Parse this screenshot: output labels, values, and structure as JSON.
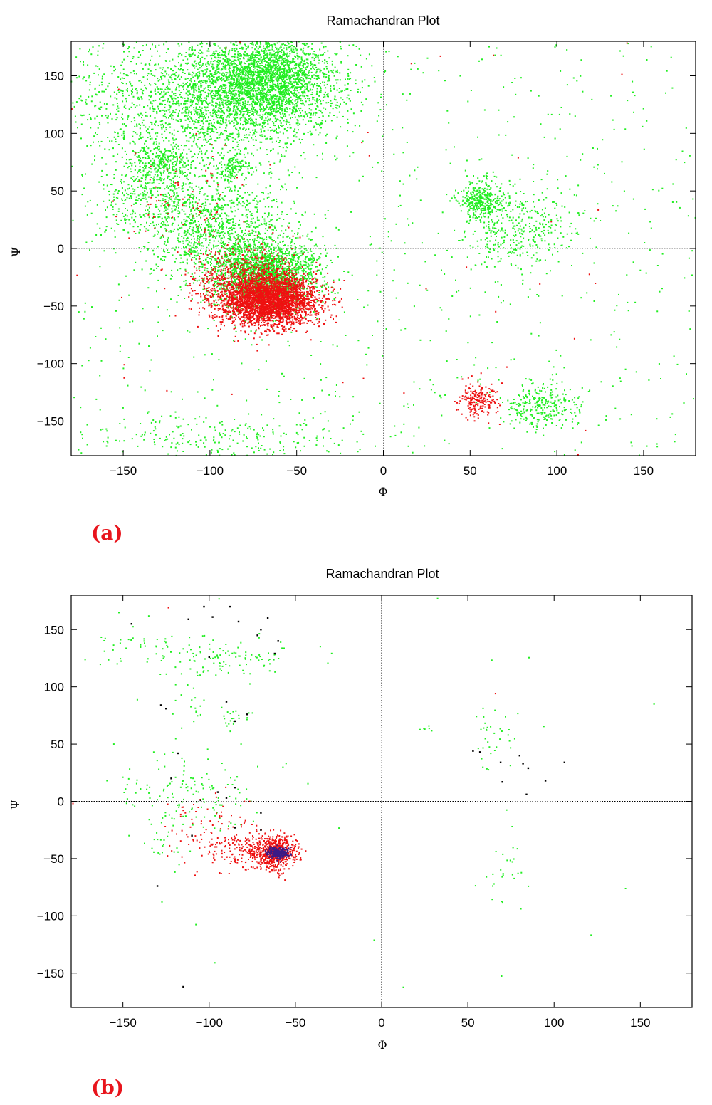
{
  "colors": {
    "green": "#22ee22",
    "red": "#ee1111",
    "black": "#000000",
    "purple": "#3a1b86",
    "panel_label": "#e8141c"
  },
  "chart_data": [
    {
      "type": "scatter",
      "panel_label": "(a)",
      "title": "Ramachandran Plot",
      "xlabel": "Φ",
      "ylabel": "Ψ",
      "xlim": [
        -180,
        180
      ],
      "ylim": [
        -180,
        180
      ],
      "xticks": [
        -150,
        -100,
        -50,
        0,
        50,
        100,
        150
      ],
      "yticks": [
        -150,
        -100,
        -50,
        0,
        50,
        100,
        150
      ],
      "grid": false,
      "zero_lines": true,
      "series": [
        {
          "color": "green",
          "clusters": [
            {
              "phi": -72,
              "psi": 140,
              "sphi": 24,
              "spsi": 22,
              "n": 2600
            },
            {
              "phi": -115,
              "psi": 125,
              "sphi": 35,
              "spsi": 30,
              "n": 1200
            },
            {
              "phi": -65,
              "psi": 155,
              "sphi": 12,
              "spsi": 14,
              "n": 600
            },
            {
              "phi": -128,
              "psi": 75,
              "sphi": 8,
              "spsi": 7,
              "n": 220
            },
            {
              "phi": -87,
              "psi": 70,
              "sphi": 6,
              "spsi": 6,
              "n": 140
            },
            {
              "phi": -95,
              "psi": 15,
              "sphi": 22,
              "spsi": 24,
              "n": 1100
            },
            {
              "phi": -68,
              "psi": -22,
              "sphi": 15,
              "spsi": 14,
              "n": 1900
            },
            {
              "phi": -130,
              "psi": 45,
              "sphi": 18,
              "spsi": 20,
              "n": 420
            },
            {
              "phi": 57,
              "psi": 42,
              "sphi": 6,
              "spsi": 9,
              "n": 330
            },
            {
              "phi": 78,
              "psi": 15,
              "sphi": 18,
              "spsi": 18,
              "n": 380
            },
            {
              "phi": 92,
              "psi": -137,
              "sphi": 12,
              "spsi": 10,
              "n": 280
            },
            {
              "phi": -90,
              "psi": -165,
              "sphi": 40,
              "spsi": 10,
              "n": 220
            }
          ],
          "uniform_count": 800
        },
        {
          "color": "red",
          "clusters": [
            {
              "phi": -65,
              "psi": -45,
              "sphi": 14,
              "spsi": 11,
              "n": 3000
            },
            {
              "phi": -80,
              "psi": -30,
              "sphi": 15,
              "spsi": 15,
              "n": 700
            },
            {
              "phi": -120,
              "psi": 40,
              "sphi": 20,
              "spsi": 25,
              "n": 80
            },
            {
              "phi": 55,
              "psi": -132,
              "sphi": 6,
              "spsi": 7,
              "n": 220
            }
          ],
          "uniform_count": 40
        }
      ]
    },
    {
      "type": "scatter",
      "panel_label": "(b)",
      "title": "Ramachandran Plot",
      "xlabel": "Φ",
      "ylabel": "Ψ",
      "xlim": [
        -180,
        180
      ],
      "ylim": [
        -180,
        180
      ],
      "xticks": [
        -150,
        -100,
        -50,
        0,
        50,
        100,
        150
      ],
      "yticks": [
        -150,
        -100,
        -50,
        0,
        50,
        100,
        150
      ],
      "grid": false,
      "zero_lines": true,
      "series": [
        {
          "color": "green",
          "clusters": [
            {
              "phi": -100,
              "psi": 128,
              "sphi": 25,
              "spsi": 10,
              "n": 130
            },
            {
              "phi": -155,
              "psi": 140,
              "sphi": 8,
              "spsi": 10,
              "n": 18
            },
            {
              "phi": -85,
              "psi": 75,
              "sphi": 6,
              "spsi": 6,
              "n": 22
            },
            {
              "phi": -110,
              "psi": 85,
              "sphi": 6,
              "spsi": 12,
              "n": 18
            },
            {
              "phi": -110,
              "psi": 5,
              "sphi": 20,
              "spsi": 18,
              "n": 150
            },
            {
              "phi": -125,
              "psi": -45,
              "sphi": 8,
              "spsi": 10,
              "n": 20
            },
            {
              "phi": 65,
              "psi": 55,
              "sphi": 6,
              "spsi": 15,
              "n": 35
            },
            {
              "phi": 72,
              "psi": -60,
              "sphi": 4,
              "spsi": 12,
              "n": 24
            },
            {
              "phi": 26,
              "psi": 62,
              "sphi": 3,
              "spsi": 6,
              "n": 6
            }
          ],
          "uniform_count": 25
        },
        {
          "color": "red",
          "clusters": [
            {
              "phi": -62,
              "psi": -45,
              "sphi": 6,
              "spsi": 7,
              "n": 650
            },
            {
              "phi": -85,
              "psi": -40,
              "sphi": 14,
              "spsi": 10,
              "n": 200
            },
            {
              "phi": -105,
              "psi": -10,
              "sphi": 15,
              "spsi": 10,
              "n": 40
            }
          ],
          "uniform_count": 3
        },
        {
          "color": "purple",
          "clusters": [
            {
              "phi": -60,
              "psi": -45,
              "sphi": 3,
              "spsi": 2.5,
              "n": 260
            }
          ],
          "uniform_count": 0
        },
        {
          "color": "black",
          "points": [
            [
              -103,
              170
            ],
            [
              -98,
              161
            ],
            [
              -145,
              155
            ],
            [
              -112,
              159
            ],
            [
              -88,
              170
            ],
            [
              -83,
              157
            ],
            [
              -66,
              160
            ],
            [
              -70,
              150
            ],
            [
              -72,
              145
            ],
            [
              -60,
              140
            ],
            [
              -62,
              129
            ],
            [
              -100,
              126
            ],
            [
              -128,
              84
            ],
            [
              -125,
              81
            ],
            [
              -90,
              87
            ],
            [
              -78,
              76
            ],
            [
              -85,
              70
            ],
            [
              -118,
              42
            ],
            [
              -122,
              20
            ],
            [
              -105,
              1
            ],
            [
              -95,
              8
            ],
            [
              -90,
              3
            ],
            [
              -85,
              12
            ],
            [
              -70,
              -10
            ],
            [
              -70,
              -25
            ],
            [
              -85,
              -23
            ],
            [
              -110,
              -30
            ],
            [
              -130,
              -74
            ],
            [
              -115,
              -162
            ],
            [
              53,
              44
            ],
            [
              57,
              43
            ],
            [
              69,
              34
            ],
            [
              80,
              40
            ],
            [
              82,
              33
            ],
            [
              85,
              29
            ],
            [
              95,
              18
            ],
            [
              106,
              34
            ],
            [
              84,
              6
            ],
            [
              70,
              17
            ]
          ],
          "uniform_count": 0
        }
      ]
    }
  ]
}
